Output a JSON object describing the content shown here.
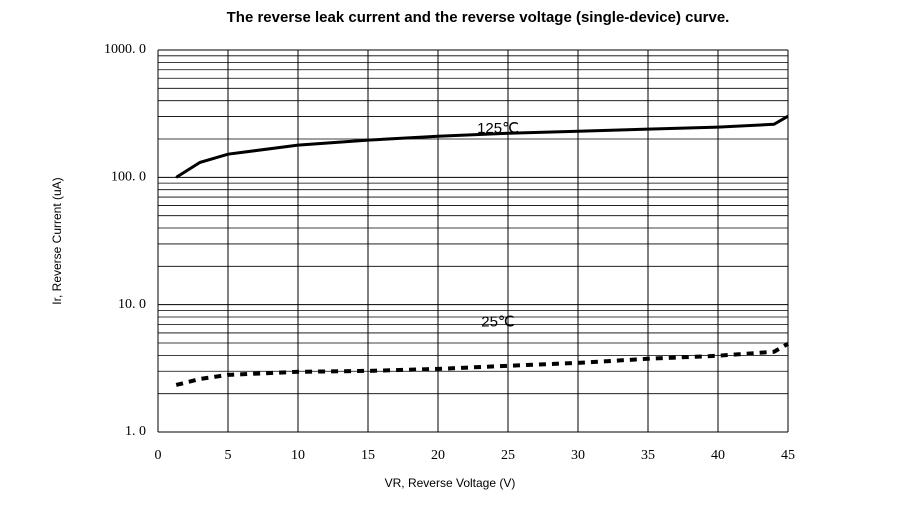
{
  "chart_data": {
    "type": "line",
    "title": "The reverse leak current and the reverse voltage (single-device) curve.",
    "x_label": "VR, Reverse Voltage (V)",
    "y_label": "Ir, Reverse Current (uA)",
    "log_y": true,
    "grid": true,
    "xlim": [
      0,
      45
    ],
    "xticks": [
      0,
      5,
      10,
      15,
      20,
      25,
      30,
      35,
      40,
      45
    ],
    "ylim": [
      1,
      1000
    ],
    "yticks": [
      {
        "value": 1,
        "label": "1. 0"
      },
      {
        "value": 10,
        "label": "10. 0"
      },
      {
        "value": 100,
        "label": "100. 0"
      },
      {
        "value": 1000,
        "label": "1000. 0"
      }
    ],
    "x": [
      1.3,
      3,
      5,
      10,
      15,
      20,
      25,
      30,
      35,
      40,
      44,
      45
    ],
    "series": [
      {
        "name": "125℃",
        "color": "#000000",
        "line_style": "solid",
        "values": [
          100,
          131,
          152,
          179,
          196,
          210,
          222,
          230,
          239,
          248,
          261,
          302
        ]
      },
      {
        "name": "25℃",
        "color": "#000000",
        "line_style": "dashed",
        "values": [
          2.34,
          2.61,
          2.81,
          2.97,
          3.02,
          3.13,
          3.31,
          3.49,
          3.76,
          3.97,
          4.27,
          4.93
        ]
      }
    ]
  }
}
